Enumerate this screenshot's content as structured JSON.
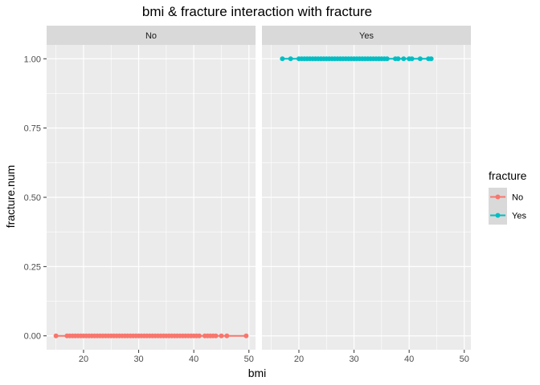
{
  "chart_data": {
    "type": "scatter",
    "title": "bmi & fracture  interaction with fracture",
    "xlabel": "bmi",
    "ylabel": "fracture.num",
    "facets": [
      {
        "label": "No",
        "series": "No",
        "y": 0,
        "x_min": 15,
        "x_max": 49.5,
        "points": [
          15,
          17,
          17.5,
          18,
          18.5,
          19,
          19.5,
          20,
          20.5,
          21,
          21.5,
          22,
          22.5,
          23,
          23.5,
          24,
          24.5,
          25,
          25.5,
          26,
          26.5,
          27,
          27.5,
          28,
          28.5,
          29,
          29.5,
          30,
          30.5,
          31,
          31.5,
          32,
          32.5,
          33,
          33.5,
          34,
          34.5,
          35,
          35.5,
          36,
          36.5,
          37,
          37.5,
          38,
          38.5,
          39,
          39.5,
          40,
          40.5,
          41,
          42,
          42.5,
          43,
          43.5,
          44,
          45,
          46,
          49.5
        ]
      },
      {
        "label": "Yes",
        "series": "Yes",
        "y": 1,
        "x_min": 17,
        "x_max": 44,
        "points": [
          17,
          18.5,
          20,
          20.5,
          21,
          21.5,
          22,
          22.5,
          23,
          23.5,
          24,
          24.5,
          25,
          25.5,
          26,
          26.5,
          27,
          27.5,
          28,
          28.5,
          29,
          29.5,
          30,
          30.5,
          31,
          31.5,
          32,
          32.5,
          33,
          33.5,
          34,
          34.5,
          35,
          35.5,
          36,
          37.5,
          38,
          39,
          40,
          40.5,
          42,
          43.5,
          44
        ]
      }
    ],
    "x_ticks": [
      20,
      30,
      40,
      50
    ],
    "y_ticks": [
      0,
      0.25,
      0.5,
      0.75,
      1
    ],
    "y_tick_labels": [
      "0.00",
      "0.25",
      "0.50",
      "0.75",
      "1.00"
    ],
    "xlim": [
      13.3,
      51.2
    ],
    "ylim": [
      -0.05,
      1.05
    ],
    "legend": {
      "title": "fracture",
      "position": "right",
      "entries": [
        {
          "label": "No",
          "color": "#F8766D"
        },
        {
          "label": "Yes",
          "color": "#00BFC4"
        }
      ]
    },
    "grid": true,
    "panel_background": "#EBEBEB",
    "strip_background": "#D9D9D9"
  }
}
